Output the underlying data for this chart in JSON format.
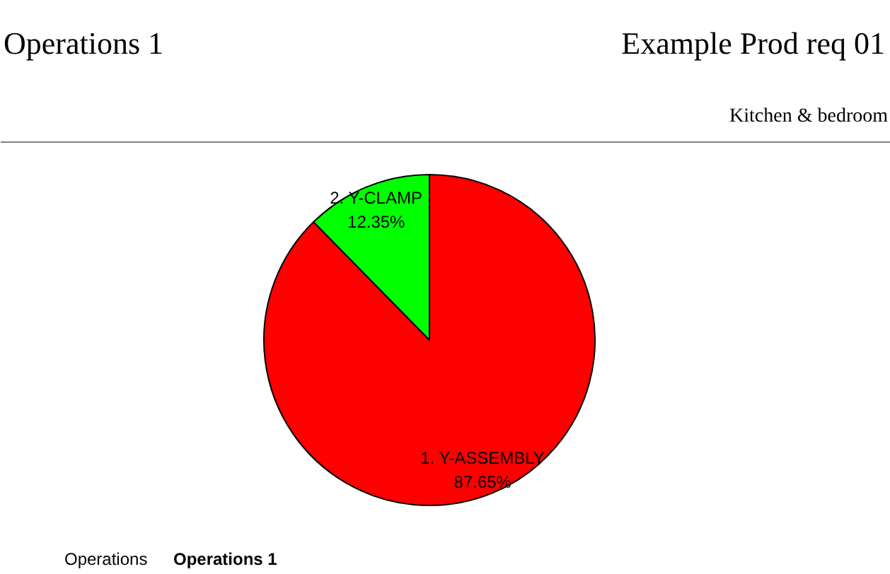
{
  "chart_data": {
    "type": "pie",
    "title": "Operations 1",
    "subtitle": "Example Prod req 01",
    "categories": [
      "1. Y-ASSEMBLY",
      "2. Y-CLAMP"
    ],
    "values": [
      87.65,
      12.35
    ],
    "colors": [
      "#ff0000",
      "#00ff00"
    ],
    "value_labels": [
      "87.65%",
      "12.35%"
    ],
    "annotations": [
      "Kitchen & bedroom",
      "Operations",
      "Operations 1"
    ]
  }
}
